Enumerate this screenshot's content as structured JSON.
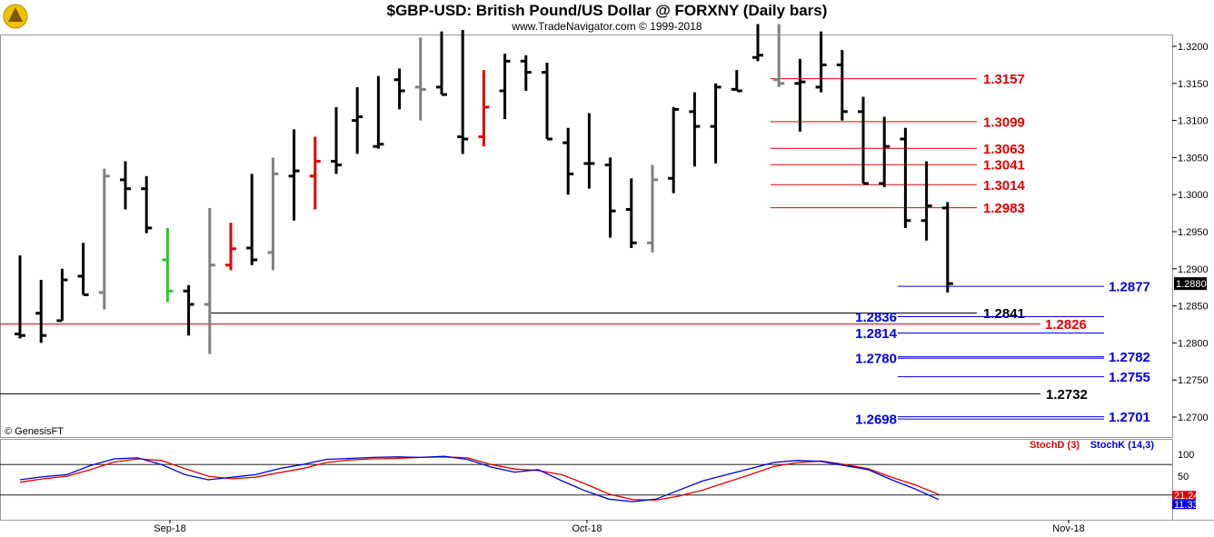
{
  "header": {
    "title": "$GBP-USD:  British Pound/US Dollar @ FORXNY  (Daily bars)",
    "subtitle": "www.TradeNavigator.com © 1999-2018"
  },
  "credit": "© GenesisFT",
  "colors": {
    "bar": "#000000",
    "bar_gray": "#808080",
    "bar_red": "#e00000",
    "bar_green": "#22cc22",
    "level_red": "#e00000",
    "level_blue": "#0000e0",
    "level_black": "#000000",
    "stoch_d": "#e00000",
    "stoch_k": "#0000e0"
  },
  "chart_data": [
    {
      "type": "ohlc",
      "title": "$GBP-USD:  British Pound/US Dollar @ FORXNY  (Daily bars)",
      "ylim": [
        1.265,
        1.323
      ],
      "y_ticks": [
        "1.3200",
        "1.3150",
        "1.3100",
        "1.3050",
        "1.3000",
        "1.2950",
        "1.2900",
        "1.2850",
        "1.2800",
        "1.2750",
        "1.2700"
      ],
      "x_ticks": [
        "Sep-18",
        "Oct-18",
        "Nov-18"
      ],
      "last_price": "1.2880",
      "bars": [
        {
          "o": 1.2812,
          "h": 1.2918,
          "l": 1.2806,
          "c": 1.281,
          "color": "black"
        },
        {
          "o": 1.284,
          "h": 1.2885,
          "l": 1.28,
          "c": 1.281,
          "color": "black"
        },
        {
          "o": 1.283,
          "h": 1.29,
          "l": 1.283,
          "c": 1.2885,
          "color": "black"
        },
        {
          "o": 1.289,
          "h": 1.2935,
          "l": 1.2865,
          "c": 1.2865,
          "color": "black"
        },
        {
          "o": 1.2868,
          "h": 1.3035,
          "l": 1.2845,
          "c": 1.3025,
          "color": "gray"
        },
        {
          "o": 1.302,
          "h": 1.3045,
          "l": 1.298,
          "c": 1.3008,
          "color": "black"
        },
        {
          "o": 1.3008,
          "h": 1.3025,
          "l": 1.2948,
          "c": 1.2955,
          "color": "black"
        },
        {
          "o": 1.2912,
          "h": 1.2955,
          "l": 1.2855,
          "c": 1.287,
          "color": "green"
        },
        {
          "o": 1.287,
          "h": 1.2878,
          "l": 1.281,
          "c": 1.2852,
          "color": "black"
        },
        {
          "o": 1.2852,
          "h": 1.2982,
          "l": 1.2785,
          "c": 1.2905,
          "color": "gray"
        },
        {
          "o": 1.2905,
          "h": 1.2962,
          "l": 1.2898,
          "c": 1.2927,
          "color": "red"
        },
        {
          "o": 1.2928,
          "h": 1.3028,
          "l": 1.2905,
          "c": 1.2912,
          "color": "black"
        },
        {
          "o": 1.2922,
          "h": 1.305,
          "l": 1.2898,
          "c": 1.3028,
          "color": "gray"
        },
        {
          "o": 1.3025,
          "h": 1.3088,
          "l": 1.2965,
          "c": 1.3032,
          "color": "black"
        },
        {
          "o": 1.3025,
          "h": 1.3078,
          "l": 1.298,
          "c": 1.3045,
          "color": "red"
        },
        {
          "o": 1.3045,
          "h": 1.3118,
          "l": 1.3028,
          "c": 1.304,
          "color": "black"
        },
        {
          "o": 1.31,
          "h": 1.3145,
          "l": 1.3055,
          "c": 1.3105,
          "color": "black"
        },
        {
          "o": 1.3065,
          "h": 1.316,
          "l": 1.3062,
          "c": 1.3068,
          "color": "black"
        },
        {
          "o": 1.3155,
          "h": 1.317,
          "l": 1.3115,
          "c": 1.314,
          "color": "black"
        },
        {
          "o": 1.3145,
          "h": 1.3212,
          "l": 1.31,
          "c": 1.3142,
          "color": "gray"
        },
        {
          "o": 1.3145,
          "h": 1.322,
          "l": 1.3135,
          "c": 1.3135,
          "color": "black"
        },
        {
          "o": 1.3078,
          "h": 1.3222,
          "l": 1.3055,
          "c": 1.3075,
          "color": "black"
        },
        {
          "o": 1.3078,
          "h": 1.3168,
          "l": 1.3065,
          "c": 1.3118,
          "color": "red"
        },
        {
          "o": 1.314,
          "h": 1.319,
          "l": 1.3102,
          "c": 1.318,
          "color": "black"
        },
        {
          "o": 1.318,
          "h": 1.3188,
          "l": 1.314,
          "c": 1.3165,
          "color": "black"
        },
        {
          "o": 1.3165,
          "h": 1.3178,
          "l": 1.3075,
          "c": 1.3075,
          "color": "black"
        },
        {
          "o": 1.307,
          "h": 1.309,
          "l": 1.3,
          "c": 1.3028,
          "color": "black"
        },
        {
          "o": 1.3042,
          "h": 1.311,
          "l": 1.3008,
          "c": 1.3042,
          "color": "black"
        },
        {
          "o": 1.304,
          "h": 1.305,
          "l": 1.2942,
          "c": 1.2978,
          "color": "black"
        },
        {
          "o": 1.298,
          "h": 1.3022,
          "l": 1.2928,
          "c": 1.2935,
          "color": "black"
        },
        {
          "o": 1.2935,
          "h": 1.304,
          "l": 1.2922,
          "c": 1.302,
          "color": "gray"
        },
        {
          "o": 1.3022,
          "h": 1.3118,
          "l": 1.3002,
          "c": 1.3115,
          "color": "black"
        },
        {
          "o": 1.3112,
          "h": 1.3138,
          "l": 1.3038,
          "c": 1.3092,
          "color": "black"
        },
        {
          "o": 1.3092,
          "h": 1.315,
          "l": 1.3042,
          "c": 1.3145,
          "color": "black"
        },
        {
          "o": 1.3142,
          "h": 1.3168,
          "l": 1.314,
          "c": 1.314,
          "color": "black"
        },
        {
          "o": 1.3185,
          "h": 1.323,
          "l": 1.318,
          "c": 1.3188,
          "color": "black"
        },
        {
          "o": 1.3155,
          "h": 1.323,
          "l": 1.3145,
          "c": 1.315,
          "color": "gray"
        },
        {
          "o": 1.315,
          "h": 1.3183,
          "l": 1.3085,
          "c": 1.3152,
          "color": "black"
        },
        {
          "o": 1.3145,
          "h": 1.322,
          "l": 1.3138,
          "c": 1.3175,
          "color": "black"
        },
        {
          "o": 1.3175,
          "h": 1.3195,
          "l": 1.31,
          "c": 1.3112,
          "color": "black"
        },
        {
          "o": 1.3112,
          "h": 1.3132,
          "l": 1.3015,
          "c": 1.3015,
          "color": "black"
        },
        {
          "o": 1.3015,
          "h": 1.3105,
          "l": 1.301,
          "c": 1.3065,
          "color": "black"
        },
        {
          "o": 1.3075,
          "h": 1.309,
          "l": 1.2955,
          "c": 1.2965,
          "color": "black"
        },
        {
          "o": 1.2965,
          "h": 1.3045,
          "l": 1.2938,
          "c": 1.2985,
          "color": "black"
        },
        {
          "o": 1.2982,
          "h": 1.299,
          "l": 1.2868,
          "c": 1.288,
          "color": "black"
        }
      ]
    },
    {
      "type": "line",
      "ylim": [
        0,
        100
      ],
      "y_ticks": [
        "100",
        "50"
      ],
      "legend": [
        "StochD (3)",
        "StochK (14,3)"
      ],
      "last_labels": [
        "21.24",
        "11.33"
      ],
      "series": [
        {
          "name": "StochD (3)",
          "values": [
            45,
            52,
            57,
            70,
            85,
            91,
            88,
            72,
            57,
            52,
            55,
            64,
            72,
            84,
            89,
            91,
            92,
            94,
            95,
            93,
            80,
            71,
            68,
            60,
            42,
            22,
            11,
            10,
            18,
            30,
            45,
            60,
            76,
            84,
            87,
            80,
            72,
            55,
            40,
            21
          ]
        },
        {
          "name": "StochK (14,3)",
          "values": [
            50,
            56,
            60,
            78,
            91,
            93,
            80,
            60,
            50,
            55,
            60,
            72,
            80,
            90,
            92,
            94,
            95,
            94,
            96,
            90,
            75,
            65,
            70,
            48,
            28,
            12,
            7,
            12,
            30,
            48,
            60,
            72,
            84,
            88,
            86,
            78,
            70,
            50,
            32,
            11
          ]
        }
      ]
    }
  ],
  "levels": [
    {
      "price": 1.3157,
      "label": "1.3157",
      "color": "red",
      "side": "right"
    },
    {
      "price": 1.3099,
      "label": "1.3099",
      "color": "red",
      "side": "right"
    },
    {
      "price": 1.3063,
      "label": "1.3063",
      "color": "red",
      "side": "right"
    },
    {
      "price": 1.3041,
      "label": "1.3041",
      "color": "red",
      "side": "right"
    },
    {
      "price": 1.3014,
      "label": "1.3014",
      "color": "red",
      "side": "right"
    },
    {
      "price": 1.2983,
      "label": "1.2983",
      "color": "red",
      "side": "right"
    },
    {
      "price": 1.2877,
      "label": "1.2877",
      "color": "blue",
      "side": "right"
    },
    {
      "price": 1.2841,
      "label": "1.2841",
      "color": "black",
      "side": "mid"
    },
    {
      "price": 1.2836,
      "label": "1.2836",
      "color": "blue",
      "side": "left"
    },
    {
      "price": 1.2826,
      "label": "1.2826",
      "color": "red",
      "side": "mid"
    },
    {
      "price": 1.2814,
      "label": "1.2814",
      "color": "blue",
      "side": "left"
    },
    {
      "price": 1.278,
      "label": "1.2780",
      "color": "blue",
      "side": "left"
    },
    {
      "price": 1.2782,
      "label": "1.2782",
      "color": "blue",
      "side": "right"
    },
    {
      "price": 1.2755,
      "label": "1.2755",
      "color": "blue",
      "side": "right"
    },
    {
      "price": 1.2732,
      "label": "1.2732",
      "color": "black",
      "side": "mid"
    },
    {
      "price": 1.2698,
      "label": "1.2698",
      "color": "blue",
      "side": "left"
    },
    {
      "price": 1.2701,
      "label": "1.2701",
      "color": "blue",
      "side": "right"
    }
  ]
}
